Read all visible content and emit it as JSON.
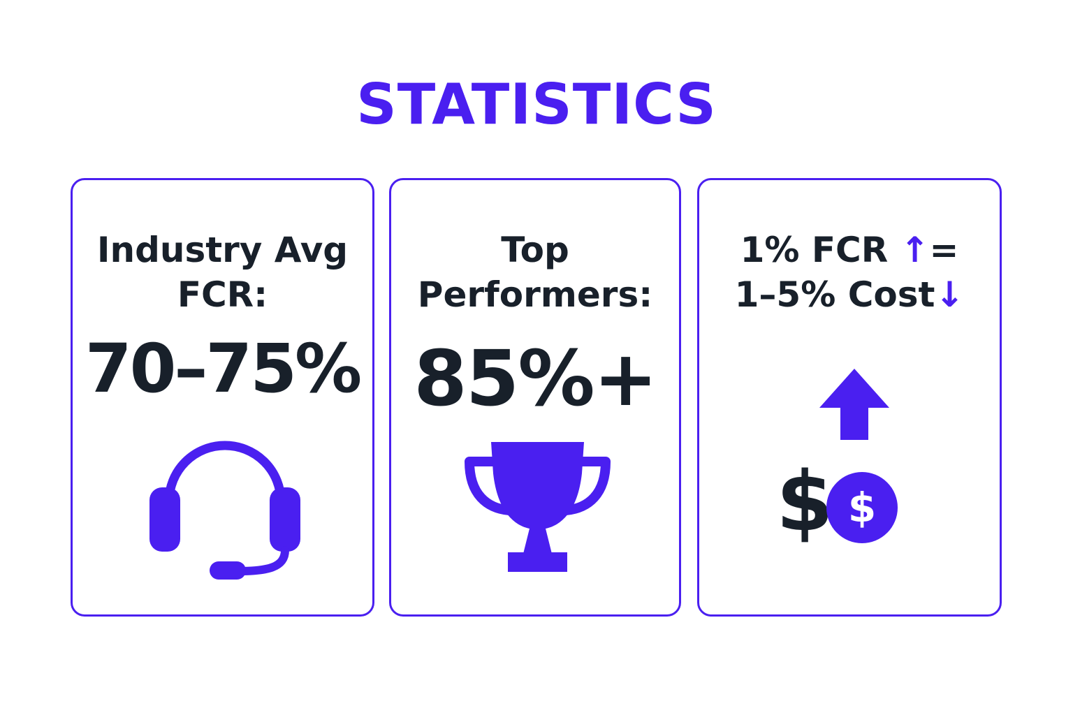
{
  "title": "STATISTICS",
  "colors": {
    "accent": "#4a1ff0",
    "text": "#18202a",
    "border": "#4a1ff0"
  },
  "cards": [
    {
      "label_lines": [
        "Industry Avg",
        "FCR:"
      ],
      "value": "70–75%",
      "icon": "headset-icon"
    },
    {
      "label_lines": [
        "Top",
        "Performers:"
      ],
      "value": "85%+",
      "icon": "trophy-icon"
    },
    {
      "label_line1_text": "1% FCR ",
      "label_line1_arrow": "↑",
      "label_line1_suffix": "=",
      "label_line2_text": "1–5% Cost",
      "label_line2_arrow": "↓",
      "icons": [
        "up-arrow-icon",
        "dollar-sign-icon",
        "dollar-coin-icon"
      ],
      "dollar_symbol": "$",
      "coin_symbol": "$"
    }
  ]
}
